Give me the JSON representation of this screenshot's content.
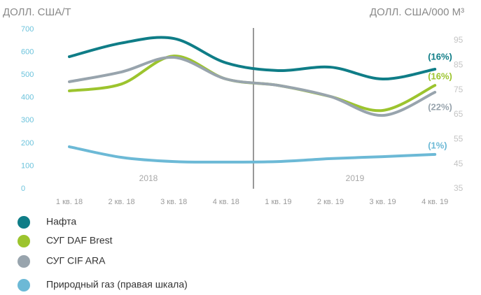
{
  "chart_data": {
    "type": "line",
    "y_label": "ДОЛЛ. США/Т",
    "y2_label": "ДОЛЛ. США/000 М³",
    "categories": [
      "1 кв. 18",
      "2 кв. 18",
      "3 кв. 18",
      "4 кв. 18",
      "1 кв. 19",
      "2 кв. 19",
      "3 кв. 19",
      "4 кв. 19"
    ],
    "years": [
      "2018",
      "2019"
    ],
    "series": [
      {
        "name": "Нафта",
        "color": "#0f7d87",
        "values": [
          580,
          640,
          660,
          553,
          519,
          534,
          482,
          525
        ],
        "annotation": "(16%)"
      },
      {
        "name": "СУГ DAF Brest",
        "color": "#9cc42e",
        "values": [
          430,
          460,
          583,
          482,
          454,
          405,
          344,
          454
        ],
        "annotation": "(16%)"
      },
      {
        "name": "СУГ CIF ARA",
        "color": "#98a4ad",
        "values": [
          470,
          513,
          577,
          482,
          454,
          405,
          322,
          424
        ],
        "annotation": "(22%)"
      },
      {
        "name": "Природный газ (правая шкала)",
        "color": "#6cb9d6",
        "axis": "y2",
        "values": [
          52,
          47.7,
          46,
          45.8,
          46,
          47.2,
          48,
          48.9
        ],
        "annotation": "(1%)"
      }
    ],
    "ylim": [
      0,
      700
    ],
    "yticks": [
      0,
      100,
      200,
      300,
      400,
      500,
      600,
      700
    ],
    "y2lim": [
      35,
      95
    ],
    "y2ticks": [
      35,
      45,
      55,
      65,
      75,
      85,
      95
    ]
  }
}
